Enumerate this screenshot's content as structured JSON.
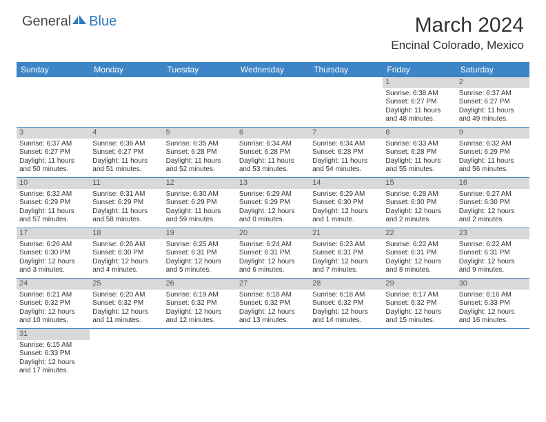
{
  "brand": {
    "general": "General",
    "blue": "Blue"
  },
  "title": "March 2024",
  "location": "Encinal Colorado, Mexico",
  "weekdays": [
    "Sunday",
    "Monday",
    "Tuesday",
    "Wednesday",
    "Thursday",
    "Friday",
    "Saturday"
  ],
  "colors": {
    "header_bg": "#3d85c6",
    "header_text": "#ffffff",
    "daynum_bg": "#d9d9d9",
    "daynum_text": "#5a5a5a",
    "row_divider": "#3d85c6",
    "body_text": "#333333"
  },
  "weeks": [
    [
      {
        "n": "",
        "sun": "",
        "set": "",
        "day": ""
      },
      {
        "n": "",
        "sun": "",
        "set": "",
        "day": ""
      },
      {
        "n": "",
        "sun": "",
        "set": "",
        "day": ""
      },
      {
        "n": "",
        "sun": "",
        "set": "",
        "day": ""
      },
      {
        "n": "",
        "sun": "",
        "set": "",
        "day": ""
      },
      {
        "n": "1",
        "sun": "Sunrise: 6:38 AM",
        "set": "Sunset: 6:27 PM",
        "day": "Daylight: 11 hours and 48 minutes."
      },
      {
        "n": "2",
        "sun": "Sunrise: 6:37 AM",
        "set": "Sunset: 6:27 PM",
        "day": "Daylight: 11 hours and 49 minutes."
      }
    ],
    [
      {
        "n": "3",
        "sun": "Sunrise: 6:37 AM",
        "set": "Sunset: 6:27 PM",
        "day": "Daylight: 11 hours and 50 minutes."
      },
      {
        "n": "4",
        "sun": "Sunrise: 6:36 AM",
        "set": "Sunset: 6:27 PM",
        "day": "Daylight: 11 hours and 51 minutes."
      },
      {
        "n": "5",
        "sun": "Sunrise: 6:35 AM",
        "set": "Sunset: 6:28 PM",
        "day": "Daylight: 11 hours and 52 minutes."
      },
      {
        "n": "6",
        "sun": "Sunrise: 6:34 AM",
        "set": "Sunset: 6:28 PM",
        "day": "Daylight: 11 hours and 53 minutes."
      },
      {
        "n": "7",
        "sun": "Sunrise: 6:34 AM",
        "set": "Sunset: 6:28 PM",
        "day": "Daylight: 11 hours and 54 minutes."
      },
      {
        "n": "8",
        "sun": "Sunrise: 6:33 AM",
        "set": "Sunset: 6:28 PM",
        "day": "Daylight: 11 hours and 55 minutes."
      },
      {
        "n": "9",
        "sun": "Sunrise: 6:32 AM",
        "set": "Sunset: 6:29 PM",
        "day": "Daylight: 11 hours and 56 minutes."
      }
    ],
    [
      {
        "n": "10",
        "sun": "Sunrise: 6:32 AM",
        "set": "Sunset: 6:29 PM",
        "day": "Daylight: 11 hours and 57 minutes."
      },
      {
        "n": "11",
        "sun": "Sunrise: 6:31 AM",
        "set": "Sunset: 6:29 PM",
        "day": "Daylight: 11 hours and 58 minutes."
      },
      {
        "n": "12",
        "sun": "Sunrise: 6:30 AM",
        "set": "Sunset: 6:29 PM",
        "day": "Daylight: 11 hours and 59 minutes."
      },
      {
        "n": "13",
        "sun": "Sunrise: 6:29 AM",
        "set": "Sunset: 6:29 PM",
        "day": "Daylight: 12 hours and 0 minutes."
      },
      {
        "n": "14",
        "sun": "Sunrise: 6:29 AM",
        "set": "Sunset: 6:30 PM",
        "day": "Daylight: 12 hours and 1 minute."
      },
      {
        "n": "15",
        "sun": "Sunrise: 6:28 AM",
        "set": "Sunset: 6:30 PM",
        "day": "Daylight: 12 hours and 2 minutes."
      },
      {
        "n": "16",
        "sun": "Sunrise: 6:27 AM",
        "set": "Sunset: 6:30 PM",
        "day": "Daylight: 12 hours and 2 minutes."
      }
    ],
    [
      {
        "n": "17",
        "sun": "Sunrise: 6:26 AM",
        "set": "Sunset: 6:30 PM",
        "day": "Daylight: 12 hours and 3 minutes."
      },
      {
        "n": "18",
        "sun": "Sunrise: 6:26 AM",
        "set": "Sunset: 6:30 PM",
        "day": "Daylight: 12 hours and 4 minutes."
      },
      {
        "n": "19",
        "sun": "Sunrise: 6:25 AM",
        "set": "Sunset: 6:31 PM",
        "day": "Daylight: 12 hours and 5 minutes."
      },
      {
        "n": "20",
        "sun": "Sunrise: 6:24 AM",
        "set": "Sunset: 6:31 PM",
        "day": "Daylight: 12 hours and 6 minutes."
      },
      {
        "n": "21",
        "sun": "Sunrise: 6:23 AM",
        "set": "Sunset: 6:31 PM",
        "day": "Daylight: 12 hours and 7 minutes."
      },
      {
        "n": "22",
        "sun": "Sunrise: 6:22 AM",
        "set": "Sunset: 6:31 PM",
        "day": "Daylight: 12 hours and 8 minutes."
      },
      {
        "n": "23",
        "sun": "Sunrise: 6:22 AM",
        "set": "Sunset: 6:31 PM",
        "day": "Daylight: 12 hours and 9 minutes."
      }
    ],
    [
      {
        "n": "24",
        "sun": "Sunrise: 6:21 AM",
        "set": "Sunset: 6:32 PM",
        "day": "Daylight: 12 hours and 10 minutes."
      },
      {
        "n": "25",
        "sun": "Sunrise: 6:20 AM",
        "set": "Sunset: 6:32 PM",
        "day": "Daylight: 12 hours and 11 minutes."
      },
      {
        "n": "26",
        "sun": "Sunrise: 6:19 AM",
        "set": "Sunset: 6:32 PM",
        "day": "Daylight: 12 hours and 12 minutes."
      },
      {
        "n": "27",
        "sun": "Sunrise: 6:18 AM",
        "set": "Sunset: 6:32 PM",
        "day": "Daylight: 12 hours and 13 minutes."
      },
      {
        "n": "28",
        "sun": "Sunrise: 6:18 AM",
        "set": "Sunset: 6:32 PM",
        "day": "Daylight: 12 hours and 14 minutes."
      },
      {
        "n": "29",
        "sun": "Sunrise: 6:17 AM",
        "set": "Sunset: 6:32 PM",
        "day": "Daylight: 12 hours and 15 minutes."
      },
      {
        "n": "30",
        "sun": "Sunrise: 6:16 AM",
        "set": "Sunset: 6:33 PM",
        "day": "Daylight: 12 hours and 16 minutes."
      }
    ],
    [
      {
        "n": "31",
        "sun": "Sunrise: 6:15 AM",
        "set": "Sunset: 6:33 PM",
        "day": "Daylight: 12 hours and 17 minutes."
      },
      {
        "n": "",
        "sun": "",
        "set": "",
        "day": ""
      },
      {
        "n": "",
        "sun": "",
        "set": "",
        "day": ""
      },
      {
        "n": "",
        "sun": "",
        "set": "",
        "day": ""
      },
      {
        "n": "",
        "sun": "",
        "set": "",
        "day": ""
      },
      {
        "n": "",
        "sun": "",
        "set": "",
        "day": ""
      },
      {
        "n": "",
        "sun": "",
        "set": "",
        "day": ""
      }
    ]
  ]
}
